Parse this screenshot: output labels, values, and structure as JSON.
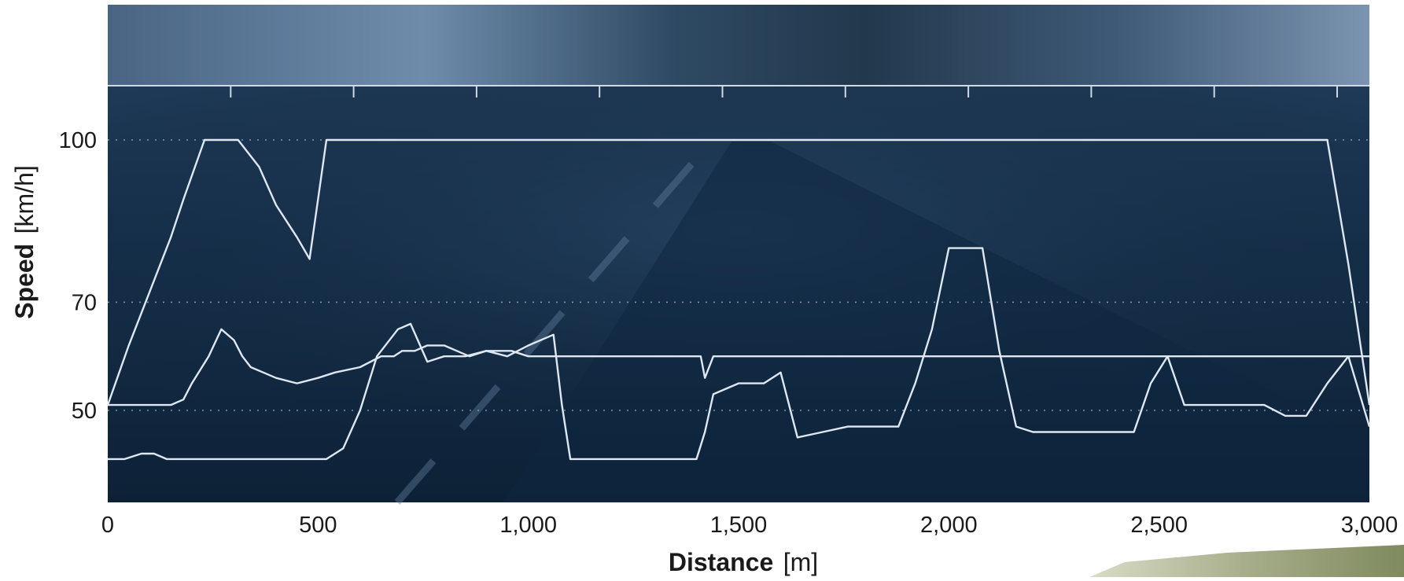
{
  "chart_data": {
    "type": "line",
    "xlabel": {
      "bold": "Distance",
      "unit": "[m]"
    },
    "ylabel": {
      "bold": "Speed",
      "unit": "[km/h]"
    },
    "xlim": [
      0,
      3000
    ],
    "ylim": [
      33,
      110
    ],
    "x_ticks": [
      0,
      500,
      1000,
      1500,
      2000,
      2500,
      3000
    ],
    "x_tick_labels": [
      "0",
      "500",
      "1,000",
      "1,500",
      "2,000",
      "2,500",
      "3,000"
    ],
    "y_ticks": [
      50,
      70,
      100
    ],
    "y_tick_labels": [
      "50",
      "70",
      "100"
    ],
    "grid": "dotted horizontal at 50, 70 and 100",
    "background": "photo of a road at dusk with motion blur",
    "colors": {
      "line": "#dfe8f2",
      "plot_bg": "#10263e",
      "photo_top": "#3b5672"
    },
    "series": [
      {
        "x": [
          0,
          50,
          100,
          150,
          180,
          230,
          270,
          310,
          360,
          400,
          450,
          480,
          520,
          540,
          570,
          620,
          670,
          720,
          800,
          830,
          850,
          870,
          900,
          930,
          950,
          980,
          1000,
          1020,
          1060,
          1080,
          1110,
          1130,
          1150,
          1170,
          1200,
          1220,
          1260,
          1300,
          1350,
          1400,
          1450,
          1500,
          1550,
          1600,
          1620,
          1650,
          1680,
          1720,
          1800,
          1900,
          1950,
          2000,
          2050,
          2100,
          2200,
          2300,
          2350,
          2400,
          2430,
          2450,
          2500,
          2550,
          2600,
          2650,
          2700,
          2750,
          2800,
          2830,
          2850,
          2880,
          2900,
          2950,
          3000
        ],
        "values": [
          51,
          62,
          72,
          82,
          89,
          100,
          100,
          100,
          95,
          88,
          82,
          78,
          100,
          100,
          100,
          100,
          100,
          100,
          100,
          100,
          100,
          100,
          100,
          100,
          100,
          100,
          100,
          100,
          100,
          100,
          100,
          100,
          100,
          100,
          100,
          100,
          100,
          100,
          100,
          100,
          100,
          100,
          100,
          100,
          100,
          100,
          100,
          100,
          100,
          100,
          100,
          100,
          100,
          100,
          100,
          100,
          100,
          100,
          100,
          100,
          100,
          100,
          100,
          100,
          100,
          100,
          100,
          100,
          100,
          100,
          100,
          77,
          51
        ]
      },
      {
        "x": [
          0,
          40,
          80,
          110,
          140,
          160,
          180,
          220,
          260,
          300,
          340,
          380,
          400,
          450,
          500,
          520,
          560,
          600,
          640,
          690,
          720,
          760,
          800,
          850,
          900,
          950,
          1000,
          1060,
          1080,
          1100,
          1120,
          1140,
          1160,
          1200,
          1240,
          1280,
          1310,
          1340,
          1380,
          1400,
          1420,
          1440,
          1500,
          1560,
          1600,
          1640,
          1700,
          1760,
          1800,
          1880,
          1920,
          1960,
          2000,
          2040,
          2080,
          2120,
          2160,
          2200,
          2240,
          2280,
          2320,
          2360,
          2400,
          2440,
          2480,
          2520,
          2560,
          2600,
          2650,
          2700,
          2750,
          2800,
          2850,
          2900,
          2950,
          3000
        ],
        "values": [
          41,
          41,
          42,
          42,
          41,
          41,
          41,
          41,
          41,
          41,
          41,
          41,
          41,
          41,
          41,
          41,
          43,
          50,
          60,
          65,
          66,
          59,
          60,
          60,
          61,
          60,
          62,
          64,
          51,
          41,
          41,
          41,
          41,
          41,
          41,
          41,
          41,
          41,
          41,
          41,
          46,
          53,
          55,
          55,
          57,
          45,
          46,
          47,
          47,
          47,
          55,
          65,
          80,
          80,
          80,
          61,
          47,
          46,
          46,
          46,
          46,
          46,
          46,
          46,
          55,
          60,
          51,
          51,
          51,
          51,
          51,
          49,
          49,
          55,
          60,
          47
        ]
      },
      {
        "x": [
          0,
          100,
          150,
          180,
          200,
          240,
          270,
          300,
          320,
          340,
          370,
          400,
          450,
          500,
          540,
          600,
          650,
          680,
          700,
          730,
          760,
          800,
          830,
          860,
          900,
          930,
          960,
          1000,
          1040,
          1080,
          1100,
          1130,
          1150,
          1170,
          1200,
          1230,
          1260,
          1300,
          1340,
          1380,
          1410,
          1420,
          1440,
          1460,
          1500,
          1550,
          1600,
          1650,
          1700,
          1750,
          1780,
          1800,
          1820,
          1850,
          1880,
          1900,
          1930,
          1960,
          2000,
          2050,
          2100,
          2150,
          2200,
          2250,
          2300,
          2350,
          2400,
          2430,
          2460,
          2500,
          2550,
          2600,
          2630,
          2660,
          2700,
          2740,
          2780,
          2820,
          2860,
          2900,
          2950,
          3000
        ],
        "values": [
          51,
          51,
          51,
          52,
          55,
          60,
          65,
          63,
          60,
          58,
          57,
          56,
          55,
          56,
          57,
          58,
          60,
          60,
          61,
          61,
          62,
          62,
          61,
          60,
          61,
          61,
          61,
          60,
          60,
          60,
          60,
          60,
          60,
          60,
          60,
          60,
          60,
          60,
          60,
          60,
          60,
          56,
          60,
          60,
          60,
          60,
          60,
          60,
          60,
          60,
          60,
          60,
          60,
          60,
          60,
          60,
          60,
          60,
          60,
          60,
          60,
          60,
          60,
          60,
          60,
          60,
          60,
          60,
          60,
          60,
          60,
          60,
          60,
          60,
          60,
          60,
          60,
          60,
          60,
          60,
          60,
          60
        ]
      }
    ]
  }
}
